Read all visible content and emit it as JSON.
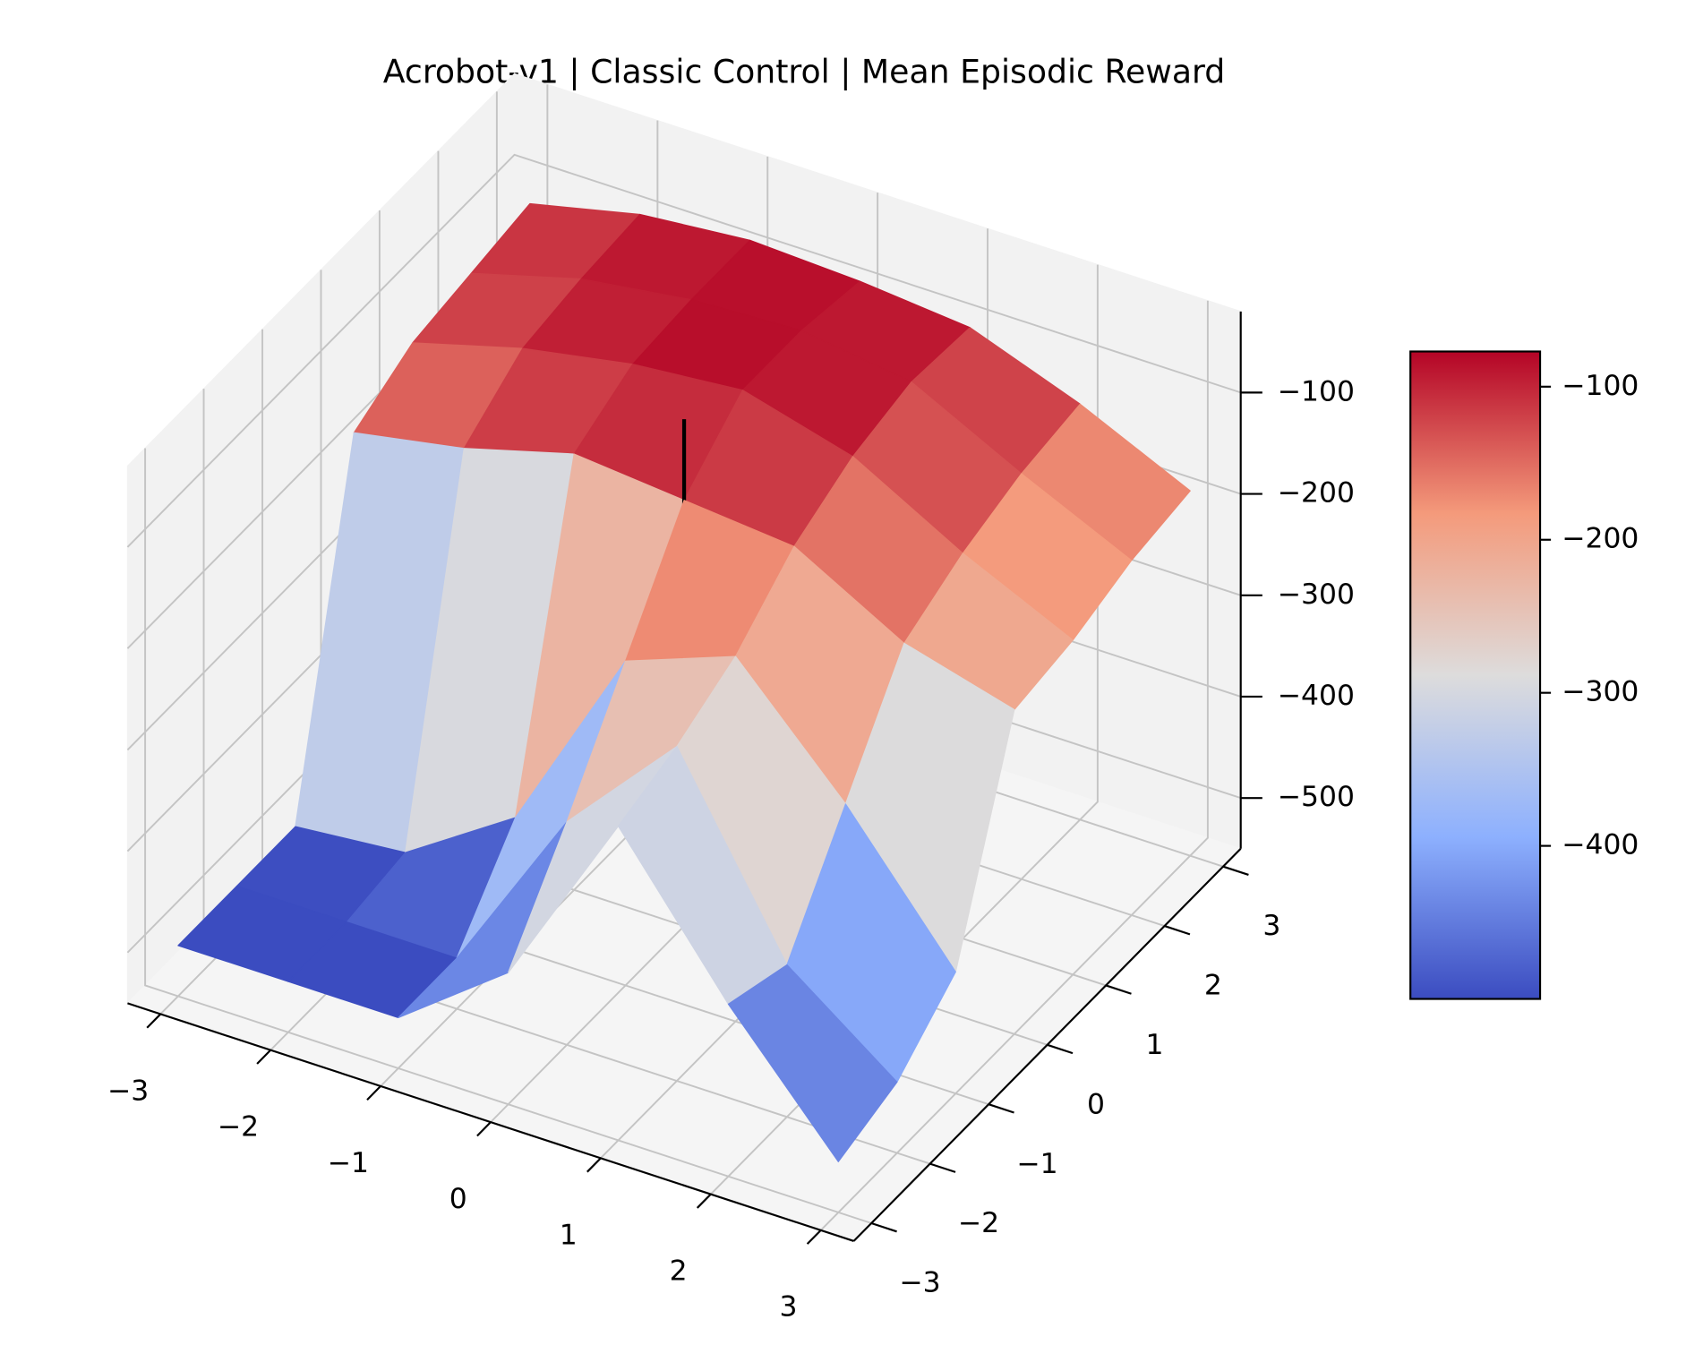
{
  "chart_data": {
    "type": "surface",
    "title": "Acrobot-v1 | Classic Control | Mean Episodic Reward",
    "x": [
      -3,
      -2,
      -1,
      0,
      1,
      2,
      3
    ],
    "y": [
      -3,
      -2,
      -1,
      0,
      1,
      2,
      3
    ],
    "z": [
      [
        -500,
        -500,
        -500,
        -420,
        -240,
        -380,
        -500
      ],
      [
        -500,
        -500,
        -500,
        -330,
        -220,
        -400,
        -480
      ],
      [
        -500,
        -490,
        -420,
        -230,
        -190,
        -300,
        -430
      ],
      [
        -170,
        -150,
        -120,
        -130,
        -140,
        -200,
        -230
      ],
      [
        -140,
        -110,
        -90,
        -80,
        -110,
        -170,
        -220
      ],
      [
        -130,
        -100,
        -85,
        -80,
        -95,
        -150,
        -200
      ],
      [
        -120,
        -95,
        -85,
        -90,
        -100,
        -140,
        -190
      ]
    ],
    "line3d": {
      "x": [
        0,
        0
      ],
      "y": [
        0,
        0
      ],
      "z": [
        -550,
        -50
      ],
      "color": "#000000"
    },
    "xlim": [
      -3.3,
      3.3
    ],
    "ylim": [
      -3.3,
      3.3
    ],
    "zlim": [
      -550,
      -20
    ],
    "xticks": [
      {
        "value": -3,
        "label": "−3"
      },
      {
        "value": -2,
        "label": "−2"
      },
      {
        "value": -1,
        "label": "−1"
      },
      0,
      1,
      2,
      3
    ],
    "yticks": [
      {
        "value": -3,
        "label": "−3"
      },
      {
        "value": -2,
        "label": "−2"
      },
      {
        "value": -1,
        "label": "−1"
      },
      0,
      1,
      2,
      3
    ],
    "zticks": [
      {
        "value": -100,
        "label": "−100"
      },
      {
        "value": -200,
        "label": "−200"
      },
      {
        "value": -300,
        "label": "−300"
      },
      {
        "value": -400,
        "label": "−400"
      },
      {
        "value": -500,
        "label": "−500"
      }
    ],
    "grid": true,
    "cmap": [
      "#3b4cc0",
      "#8db0fe",
      "#dddcdc",
      "#f49a7b",
      "#b40426"
    ],
    "colorbar": {
      "clim": [
        -500,
        -77
      ],
      "ticks": [
        {
          "value": -100,
          "label": "−100"
        },
        {
          "value": -200,
          "label": "−200"
        },
        {
          "value": -300,
          "label": "−300"
        },
        {
          "value": -400,
          "label": "−400"
        }
      ]
    }
  }
}
